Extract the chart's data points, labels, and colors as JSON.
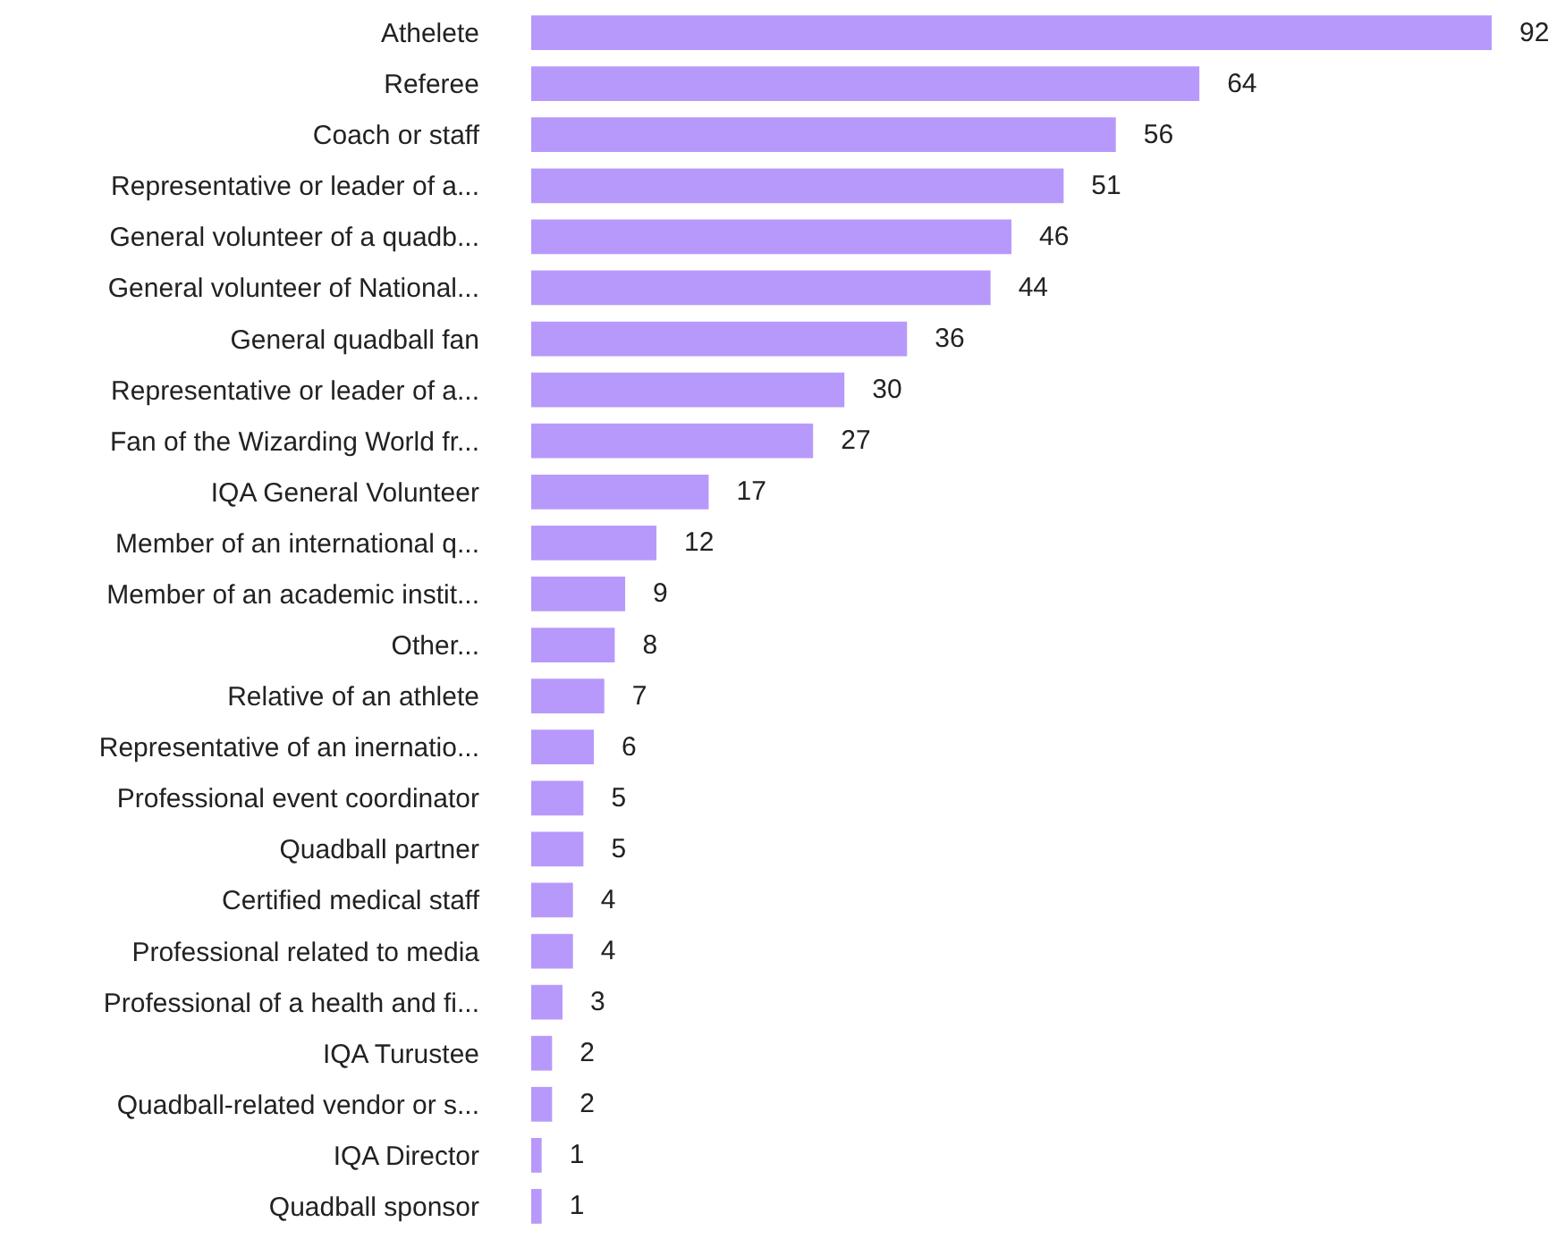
{
  "chart_data": {
    "type": "bar",
    "orientation": "horizontal",
    "data_labels": true,
    "legend": false,
    "categories": [
      "Athelete",
      "Referee",
      "Coach or staff",
      "Representative or leader of a...",
      "General volunteer of a quadb...",
      "General volunteer of National...",
      "General quadball fan",
      "Representative or leader of a...",
      "Fan of the Wizarding World fr...",
      "IQA General Volunteer",
      "Member of an international q...",
      "Member of an academic instit...",
      "Other...",
      "Relative of an athlete",
      "Representative of an inernatio...",
      "Professional event coordinator",
      "Quadball partner",
      "Certified medical staff",
      "Professional related to media",
      "Professional of a health and fi...",
      "IQA Turustee",
      "Quadball-related vendor or s...",
      "IQA Director",
      "Quadball sponsor"
    ],
    "values": [
      92,
      64,
      56,
      51,
      46,
      44,
      36,
      30,
      27,
      17,
      12,
      9,
      8,
      7,
      6,
      5,
      5,
      4,
      4,
      3,
      2,
      2,
      1,
      1
    ],
    "color": "#b799fb"
  }
}
